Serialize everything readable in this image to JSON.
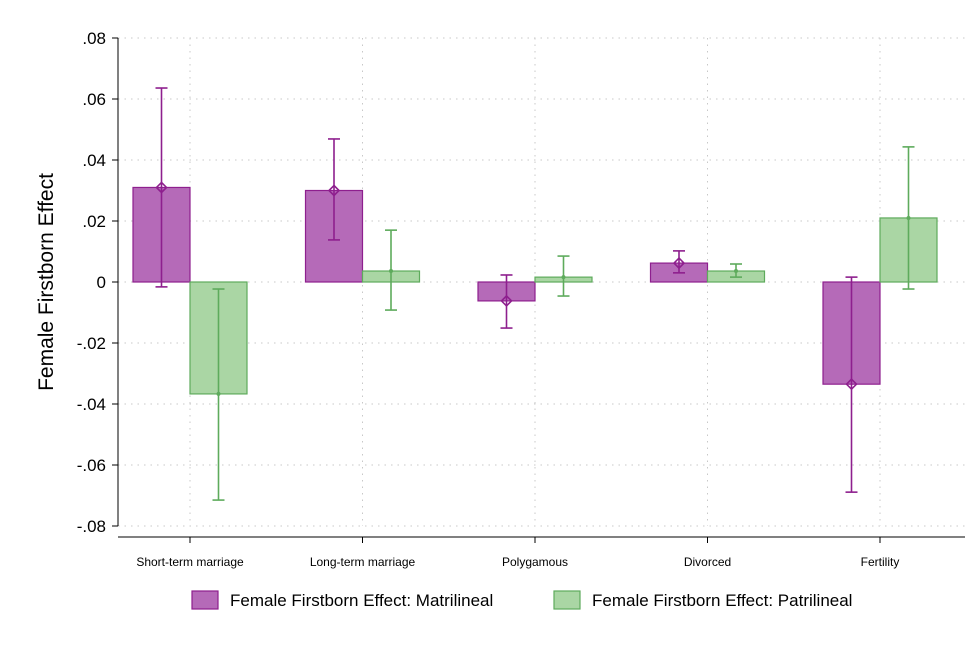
{
  "chart_data": {
    "type": "bar",
    "title": "",
    "xlabel": "",
    "ylabel": "Female Firstborn Effect",
    "ylim": [
      -0.08,
      0.08
    ],
    "yticks": [
      0.08,
      0.06,
      0.04,
      0.02,
      0,
      -0.02,
      -0.04,
      -0.06,
      -0.08
    ],
    "ytick_labels": [
      ".08",
      ".06",
      ".04",
      ".02",
      "0",
      "-.02",
      "-.04",
      "-.06",
      "-.08"
    ],
    "grid": true,
    "legend_position": "bottom",
    "categories": [
      "Short-term marriage",
      "Long-term marriage",
      "Polygamous",
      "Divorced",
      "Fertility"
    ],
    "series": [
      {
        "name": "Female Firstborn Effect: Matrilineal",
        "color": "#b56ab8",
        "edge_color": "#8e1f8e",
        "marker": "diamond",
        "values": [
          0.031,
          0.03,
          -0.0062,
          0.0062,
          -0.0335
        ],
        "ci_upper": [
          0.0636,
          0.0469,
          0.0023,
          0.0102,
          0.0016
        ],
        "ci_lower": [
          -0.0016,
          0.0138,
          -0.0151,
          0.003,
          -0.0689
        ]
      },
      {
        "name": "Female Firstborn Effect: Patrilineal",
        "color": "#aad6a4",
        "edge_color": "#5eab5c",
        "marker": "dot",
        "values": [
          -0.0367,
          0.0036,
          0.0016,
          0.0036,
          0.021
        ],
        "ci_upper": [
          -0.0023,
          0.017,
          0.0085,
          0.0059,
          0.0443
        ],
        "ci_lower": [
          -0.0715,
          -0.0092,
          -0.0046,
          0.0016,
          -0.0023
        ]
      }
    ]
  }
}
